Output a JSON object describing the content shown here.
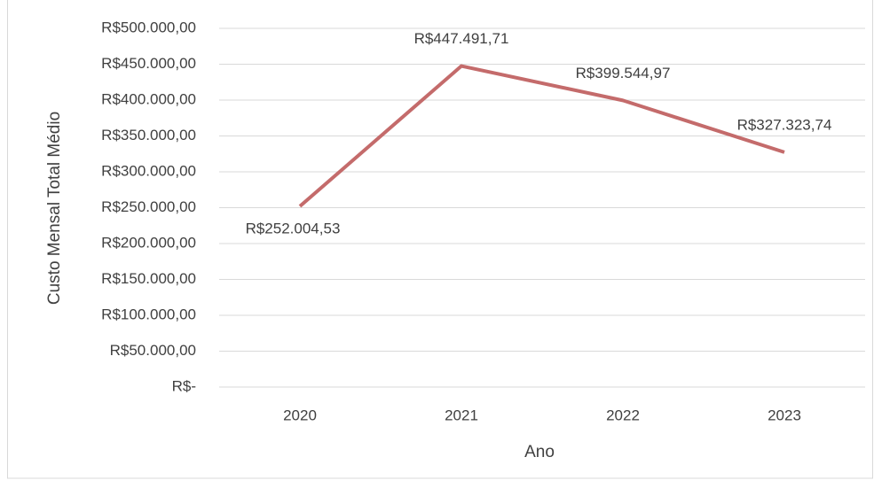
{
  "chart_data": {
    "type": "line",
    "categories": [
      "2020",
      "2021",
      "2022",
      "2023"
    ],
    "series": [
      {
        "name": "Custo Mensal Total Médio",
        "color": "#c46b6b",
        "values": [
          252004.53,
          447491.71,
          399544.97,
          327323.74
        ],
        "value_labels": [
          "R$252.004,53",
          "R$447.491,71",
          "R$399.544,97",
          "R$327.323,74"
        ]
      }
    ],
    "ylim": [
      0,
      500000
    ],
    "yticks": [
      {
        "value": 0,
        "label": "R$-"
      },
      {
        "value": 50000,
        "label": "R$50.000,00"
      },
      {
        "value": 100000,
        "label": "R$100.000,00"
      },
      {
        "value": 150000,
        "label": "R$150.000,00"
      },
      {
        "value": 200000,
        "label": "R$200.000,00"
      },
      {
        "value": 250000,
        "label": "R$250.000,00"
      },
      {
        "value": 300000,
        "label": "R$300.000,00"
      },
      {
        "value": 350000,
        "label": "R$350.000,00"
      },
      {
        "value": 400000,
        "label": "R$400.000,00"
      },
      {
        "value": 450000,
        "label": "R$450.000,00"
      },
      {
        "value": 500000,
        "label": "R$500.000,00"
      }
    ],
    "ylabel": "Custo Mensal Total Médio",
    "xlabel": "Ano",
    "grid": true
  }
}
